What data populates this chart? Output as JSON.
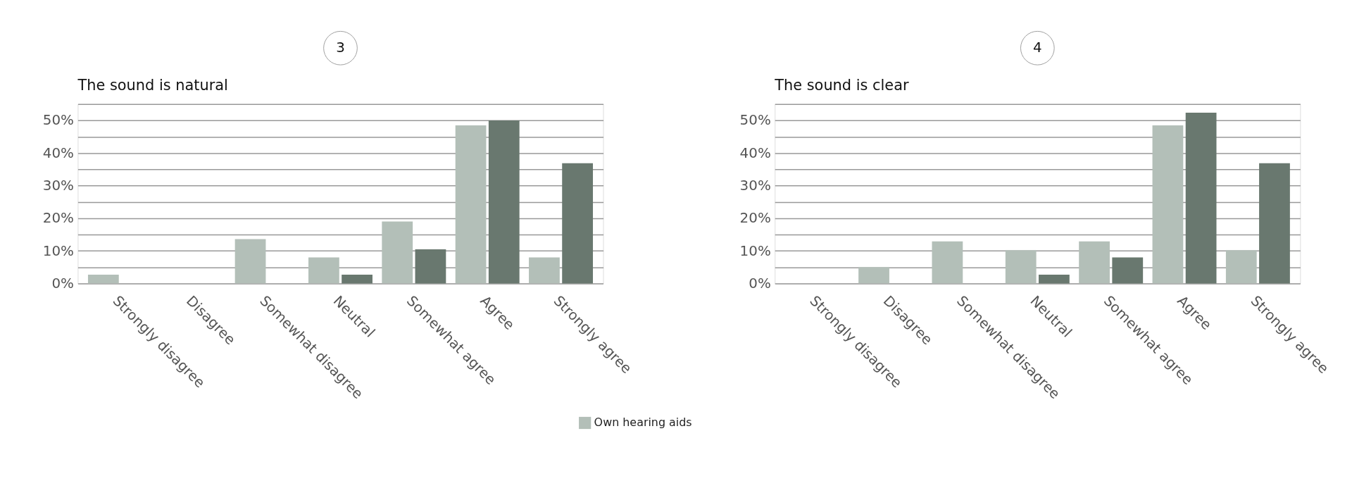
{
  "chart_data": [
    {
      "type": "bar",
      "title": "The sound is natural",
      "annotations": [
        "3"
      ],
      "categories": [
        "Strongly disagree",
        "Disagree",
        "Somewhat disagree",
        "Neutral",
        "Somewhat agree",
        "Agree",
        "Strongly agree"
      ],
      "series": [
        {
          "name": "Own hearing aids",
          "color": "#b3bfb8",
          "values": [
            2.7,
            0,
            13.6,
            8.0,
            19.0,
            48.5,
            8.0
          ]
        },
        {
          "color": "#69786f",
          "values": [
            0,
            0,
            0,
            2.7,
            10.5,
            50,
            36.9
          ]
        }
      ],
      "ylim": [
        0,
        55
      ],
      "yticks": [
        {
          "value": 0,
          "label": "0%"
        },
        {
          "value": 5,
          "label": null
        },
        {
          "value": 10,
          "label": "10%"
        },
        {
          "value": 15,
          "label": null
        },
        {
          "value": 20,
          "label": "20%"
        },
        {
          "value": 25,
          "label": null
        },
        {
          "value": 30,
          "label": "30%"
        },
        {
          "value": 35,
          "label": null
        },
        {
          "value": 40,
          "label": "40%"
        },
        {
          "value": 45,
          "label": null
        },
        {
          "value": 50,
          "label": "50%"
        },
        {
          "value": 55,
          "label": null
        }
      ],
      "grid": "y",
      "legend": "bottom"
    },
    {
      "type": "bar",
      "title": "The sound is clear",
      "annotations": [
        "4"
      ],
      "categories": [
        "Strongly disagree",
        "Disagree",
        "Somewhat disagree",
        "Neutral",
        "Somewhat agree",
        "Agree",
        "Strongly agree"
      ],
      "series": [
        {
          "color": "#b3bfb8",
          "values": [
            0,
            5.0,
            12.9,
            10.2,
            12.9,
            48.5,
            10.2
          ]
        },
        {
          "color": "#69786f",
          "values": [
            0,
            0,
            0,
            2.7,
            8.0,
            52.4,
            36.9
          ]
        }
      ],
      "ylim": [
        0,
        55
      ],
      "yticks": [
        {
          "value": 0,
          "label": "0%"
        },
        {
          "value": 5,
          "label": null
        },
        {
          "value": 10,
          "label": "10%"
        },
        {
          "value": 15,
          "label": null
        },
        {
          "value": 20,
          "label": "20%"
        },
        {
          "value": 25,
          "label": null
        },
        {
          "value": 30,
          "label": "30%"
        },
        {
          "value": 35,
          "label": null
        },
        {
          "value": 40,
          "label": "40%"
        },
        {
          "value": 45,
          "label": null
        },
        {
          "value": 50,
          "label": "50%"
        },
        {
          "value": 55,
          "label": null
        }
      ],
      "grid": "y"
    }
  ]
}
